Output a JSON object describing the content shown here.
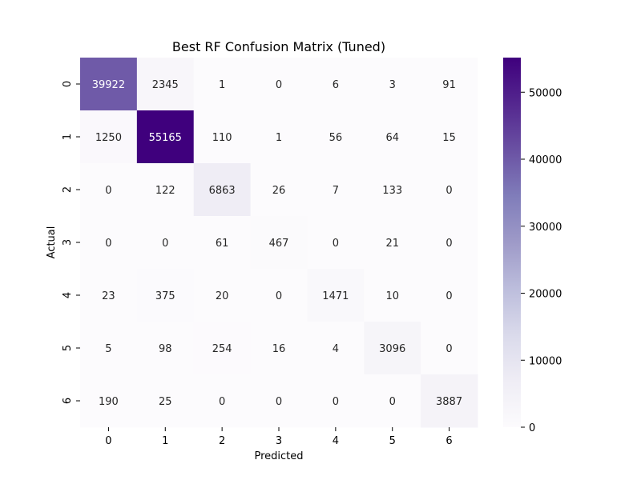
{
  "chart_data": {
    "type": "heatmap",
    "title": "Best RF Confusion Matrix (Tuned)",
    "xlabel": "Predicted",
    "ylabel": "Actual",
    "x_categories": [
      "0",
      "1",
      "2",
      "3",
      "4",
      "5",
      "6"
    ],
    "y_categories": [
      "0",
      "1",
      "2",
      "3",
      "4",
      "5",
      "6"
    ],
    "values": [
      [
        39922,
        2345,
        1,
        0,
        6,
        3,
        91
      ],
      [
        1250,
        55165,
        110,
        1,
        56,
        64,
        15
      ],
      [
        0,
        122,
        6863,
        26,
        7,
        133,
        0
      ],
      [
        0,
        0,
        61,
        467,
        0,
        21,
        0
      ],
      [
        23,
        375,
        20,
        0,
        1471,
        10,
        0
      ],
      [
        5,
        98,
        254,
        16,
        4,
        3096,
        0
      ],
      [
        190,
        25,
        0,
        0,
        0,
        0,
        3887
      ]
    ],
    "colormap": "Purples",
    "color_low": "#fcfbfd",
    "color_high": "#3f007d",
    "vmin": 0,
    "vmax": 55165,
    "colorbar_ticks": [
      0,
      10000,
      20000,
      30000,
      40000,
      50000
    ],
    "colorbar_tick_labels": [
      "0",
      "10000",
      "20000",
      "30000",
      "40000",
      "50000"
    ]
  }
}
